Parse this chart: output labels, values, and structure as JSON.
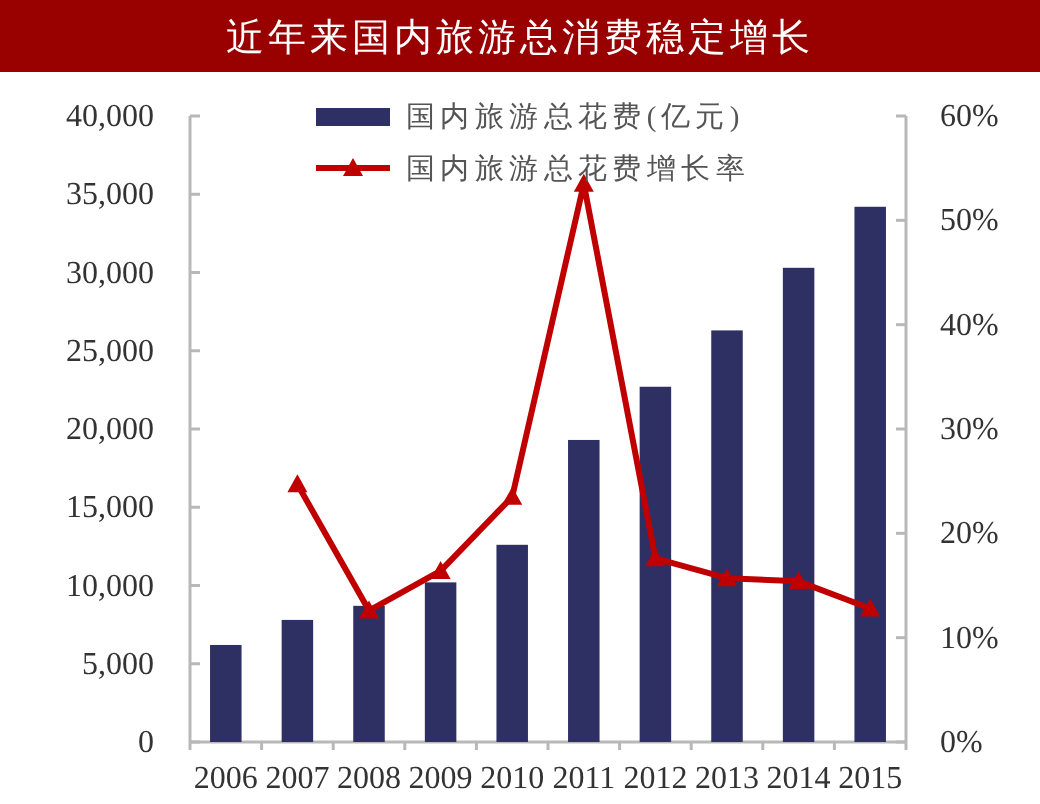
{
  "chart_data": {
    "type": "bar",
    "title": "近年来国内旅游总消费稳定增长",
    "categories": [
      "2006",
      "2007",
      "2008",
      "2009",
      "2010",
      "2011",
      "2012",
      "2013",
      "2014",
      "2015"
    ],
    "series": [
      {
        "name": "国内旅游总花费(亿元)",
        "color": "#2e2f63",
        "values": [
          6200,
          7800,
          8700,
          10200,
          12600,
          19300,
          22700,
          26300,
          30300,
          34200
        ]
      },
      {
        "name": "国内旅游总花费增长率",
        "type": "line",
        "axis": "y2",
        "color": "#c00000",
        "values": [
          null,
          24.7,
          12.6,
          16.4,
          23.5,
          53.5,
          17.6,
          15.7,
          15.4,
          12.8
        ]
      }
    ],
    "ylim": [
      0,
      40000
    ],
    "yticks": [
      0,
      {
        "value": 5000,
        "label": "5,000"
      },
      {
        "value": 10000,
        "label": "10,000"
      },
      {
        "value": 15000,
        "label": "15,000"
      },
      {
        "value": 20000,
        "label": "20,000"
      },
      {
        "value": 25000,
        "label": "25,000"
      },
      {
        "value": 30000,
        "label": "30,000"
      },
      {
        "value": 35000,
        "label": "35,000"
      },
      {
        "value": 40000,
        "label": "40,000"
      }
    ],
    "y2lim": [
      0,
      60
    ],
    "y2ticks": [
      {
        "value": 0,
        "label": "0%"
      },
      {
        "value": 10,
        "label": "10%"
      },
      {
        "value": 20,
        "label": "20%"
      },
      {
        "value": 30,
        "label": "30%"
      },
      {
        "value": 40,
        "label": "40%"
      },
      {
        "value": 50,
        "label": "50%"
      },
      {
        "value": 60,
        "label": "60%"
      }
    ],
    "legend": "top",
    "grid": false,
    "marker": "triangle"
  }
}
